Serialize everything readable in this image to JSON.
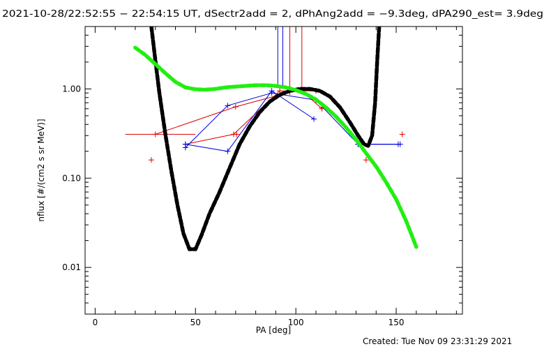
{
  "chart_data": {
    "type": "scatter",
    "title": "2021-10-28/22:52:55 − 22:54:15 UT, dSectr2add = 2, dPhAng2add = −9.3deg, dPA290_est=  3.9deg",
    "xlabel": "PA [deg]",
    "ylabel": "nflux [#/(cm2 s sr MeV)]",
    "footer": "Created: Tue Nov 09 23:31:29 2021",
    "xlim": [
      -5,
      183
    ],
    "ylim": [
      0.003,
      5.0
    ],
    "yscale": "log",
    "x_ticks": [
      0,
      50,
      100,
      150
    ],
    "x_tick_labels": [
      "0",
      "50",
      "100",
      "150"
    ],
    "y_ticks": [
      0.01,
      0.1,
      1.0
    ],
    "y_tick_labels": [
      "0.01",
      "0.10",
      "1.00"
    ],
    "grid": false,
    "colors": {
      "red": "#dd0000",
      "blue": "#0000dd",
      "black_fit": "#000000",
      "green_fit": "#22ee11"
    },
    "series": [
      {
        "color": "red",
        "marker": "plus",
        "points": [
          [
            28,
            0.16
          ],
          [
            70.5,
            0.31
          ],
          [
            113,
            0.62
          ],
          [
            135,
            0.16
          ],
          [
            153,
            0.31
          ]
        ]
      },
      {
        "color": "red",
        "marker": "plus",
        "connected": true,
        "xerr": [
          [
            15,
            50
          ]
        ],
        "points": [
          [
            30,
            0.31
          ],
          [
            70,
            0.63
          ],
          [
            97,
            0.92
          ],
          [
            103,
            0.95
          ],
          [
            113,
            0.6
          ]
        ]
      },
      {
        "color": "red",
        "marker": "plus",
        "connected": true,
        "points": [
          [
            45,
            0.24
          ],
          [
            69,
            0.31
          ],
          [
            92,
            0.95
          ],
          [
            110,
            0.95
          ]
        ]
      },
      {
        "color": "blue",
        "marker": "plus",
        "connected": true,
        "points": [
          [
            45,
            0.22
          ],
          [
            66,
            0.65
          ],
          [
            88,
            0.9
          ],
          [
            110,
            0.75
          ],
          [
            131,
            0.24
          ],
          [
            151,
            0.24
          ]
        ]
      },
      {
        "color": "blue",
        "marker": "plus",
        "connected": true,
        "points": [
          [
            45,
            0.24
          ],
          [
            66,
            0.2
          ],
          [
            88,
            0.95
          ],
          [
            109,
            0.46
          ]
        ]
      },
      {
        "color": "blue",
        "marker": "plus",
        "connected": true,
        "xerr": [
          [
            131,
            151
          ]
        ],
        "points": [
          [
            131,
            0.24
          ],
          [
            152,
            0.24
          ]
        ]
      },
      {
        "color": "black_fit",
        "style": "thick-dashed",
        "points": [
          [
            28,
            5.0
          ],
          [
            30,
            2.1
          ],
          [
            32,
            0.9
          ],
          [
            35,
            0.31
          ],
          [
            38,
            0.12
          ],
          [
            41,
            0.05
          ],
          [
            44,
            0.024
          ],
          [
            47,
            0.016
          ],
          [
            50,
            0.016
          ],
          [
            53,
            0.023
          ],
          [
            57,
            0.04
          ],
          [
            62,
            0.07
          ],
          [
            67,
            0.13
          ],
          [
            72,
            0.24
          ],
          [
            77,
            0.38
          ],
          [
            82,
            0.55
          ],
          [
            87,
            0.72
          ],
          [
            92,
            0.86
          ],
          [
            97,
            0.95
          ],
          [
            102,
            1.0
          ],
          [
            107,
            1.0
          ],
          [
            112,
            0.95
          ],
          [
            117,
            0.82
          ],
          [
            122,
            0.62
          ],
          [
            127,
            0.42
          ],
          [
            131,
            0.3
          ],
          [
            134,
            0.24
          ],
          [
            136,
            0.23
          ],
          [
            138,
            0.3
          ],
          [
            139.5,
            0.7
          ],
          [
            140.5,
            2.0
          ],
          [
            141.5,
            5.0
          ]
        ]
      },
      {
        "color": "green_fit",
        "style": "thick-dashed",
        "points": [
          [
            20,
            2.9
          ],
          [
            25,
            2.4
          ],
          [
            30,
            1.9
          ],
          [
            35,
            1.5
          ],
          [
            40,
            1.2
          ],
          [
            45,
            1.04
          ],
          [
            50,
            0.99
          ],
          [
            55,
            0.98
          ],
          [
            60,
            1.0
          ],
          [
            65,
            1.04
          ],
          [
            70,
            1.06
          ],
          [
            75,
            1.08
          ],
          [
            80,
            1.1
          ],
          [
            85,
            1.1
          ],
          [
            90,
            1.08
          ],
          [
            95,
            1.04
          ],
          [
            100,
            0.97
          ],
          [
            105,
            0.88
          ],
          [
            110,
            0.76
          ],
          [
            115,
            0.62
          ],
          [
            120,
            0.49
          ],
          [
            125,
            0.37
          ],
          [
            130,
            0.27
          ],
          [
            135,
            0.19
          ],
          [
            140,
            0.135
          ],
          [
            145,
            0.09
          ],
          [
            150,
            0.058
          ],
          [
            155,
            0.033
          ],
          [
            160,
            0.017
          ]
        ]
      }
    ],
    "annotations": {
      "top_ticks": [
        {
          "color": "blue",
          "x": 91,
          "ybottom": 1.05
        },
        {
          "color": "blue",
          "x": 93.5,
          "ybottom": 1.05
        },
        {
          "color": "red",
          "x": 97,
          "ybottom": 1.05
        },
        {
          "color": "red",
          "x": 103,
          "ybottom": 1.05
        }
      ]
    }
  }
}
